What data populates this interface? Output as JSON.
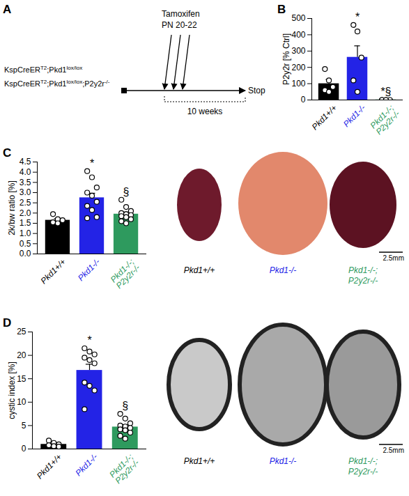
{
  "chart_data": [
    {
      "type": "bar",
      "panel": "B",
      "ylabel": "P2y2r [% Ctrl]",
      "categories": [
        "Pkd1+/+",
        "Pkd1-/-",
        "Pkd1-/-;P2y2r-/-"
      ],
      "values": [
        100,
        262,
        1
      ],
      "errors": [
        25,
        70,
        1
      ],
      "points": [
        [
          190,
          120,
          80,
          60,
          50
        ],
        [
          460,
          420,
          260,
          120,
          50
        ],
        [
          0,
          0,
          0,
          0,
          0
        ]
      ],
      "colors": [
        "#000000",
        "#2323e6",
        "#2e9a5e"
      ],
      "annotations": [
        null,
        "*",
        "*§"
      ],
      "ylim": [
        0,
        500
      ],
      "yticks": [
        0,
        100,
        200,
        300,
        400,
        500
      ]
    },
    {
      "type": "bar",
      "panel": "C",
      "ylabel": "2k/bw ratio [%]",
      "categories": [
        "Pkd1+/+",
        "Pkd1-/-",
        "Pkd1-/-;P2y2r-/-"
      ],
      "values": [
        1.65,
        2.75,
        1.95
      ],
      "errors": [
        0.08,
        0.22,
        0.1
      ],
      "points": [
        [
          1.95,
          1.7,
          1.65,
          1.55,
          1.5
        ],
        [
          4.05,
          3.75,
          3.25,
          3.0,
          2.85,
          2.55,
          2.35,
          2.15,
          1.8,
          1.75
        ],
        [
          2.65,
          2.3,
          2.1,
          2.0,
          1.95,
          1.9,
          1.85,
          1.8,
          1.7,
          1.6,
          1.5
        ]
      ],
      "colors": [
        "#000000",
        "#2323e6",
        "#2e9a5e"
      ],
      "annotations": [
        null,
        "*",
        "§"
      ],
      "ylim": [
        0,
        4.5
      ],
      "yticks": [
        {
          "value": 0,
          "label": "0.0"
        },
        {
          "value": 0.5,
          "label": "0.5"
        },
        {
          "value": 1,
          "label": "1.0"
        },
        {
          "value": 1.5,
          "label": "1.5"
        },
        {
          "value": 2,
          "label": "2.0"
        },
        {
          "value": 2.5,
          "label": "2.5"
        },
        {
          "value": 3,
          "label": "3.0"
        },
        {
          "value": 3.5,
          "label": "3.5"
        },
        {
          "value": 4,
          "label": "4.0"
        },
        {
          "value": 4.5,
          "label": "4.5"
        }
      ]
    },
    {
      "type": "bar",
      "panel": "D",
      "ylabel": "cystic index [%]",
      "categories": [
        "Pkd1+/+",
        "Pkd1-/-",
        "Pkd1-/-;P2y2r-/-"
      ],
      "values": [
        1.0,
        16.8,
        4.7
      ],
      "errors": [
        0.2,
        1.3,
        0.5
      ],
      "points": [
        [
          1.8,
          1.3,
          1.0,
          0.8,
          0.6,
          0.5
        ],
        [
          21.5,
          20.8,
          20.2,
          19.5,
          19.0,
          18.3,
          14.2,
          13.5,
          12.5,
          8.5
        ],
        [
          7.5,
          6.5,
          5.5,
          5.0,
          4.8,
          4.5,
          4.2,
          4.0,
          3.5,
          2.8,
          2.2
        ]
      ],
      "colors": [
        "#000000",
        "#2323e6",
        "#2e9a5e"
      ],
      "annotations": [
        null,
        "*",
        "§"
      ],
      "ylim": [
        0,
        25
      ],
      "yticks": [
        0,
        5,
        10,
        15,
        20,
        25
      ]
    }
  ],
  "diagram": {
    "panel": "A",
    "genotypes": [
      [
        {
          "text": "KspCreER"
        },
        {
          "text": "T2",
          "sup": true
        },
        {
          "text": ";Pkd1"
        },
        {
          "text": "lox/lox",
          "sup": true
        }
      ],
      [
        {
          "text": "KspCreER"
        },
        {
          "text": "T2",
          "sup": true
        },
        {
          "text": ";Pkd1"
        },
        {
          "text": "lox/lox",
          "sup": true
        },
        {
          "text": ";P2y2r"
        },
        {
          "text": "-/-",
          "sup": true
        }
      ]
    ],
    "treatment": "Tamoxifen",
    "treatment_time": "PN 20-22",
    "end": "Stop",
    "duration": "10 weeks"
  },
  "images": {
    "C": {
      "captions": [
        "Pkd1+/+",
        "Pkd1-/-",
        "Pkd1-/-;P2y2r-/-"
      ],
      "scale_bar": "2.5mm"
    },
    "D": {
      "captions": [
        "Pkd1+/+",
        "Pkd1-/-",
        "Pkd1-/-;P2y2r-/-"
      ],
      "scale_bar": "2.5mm"
    }
  }
}
